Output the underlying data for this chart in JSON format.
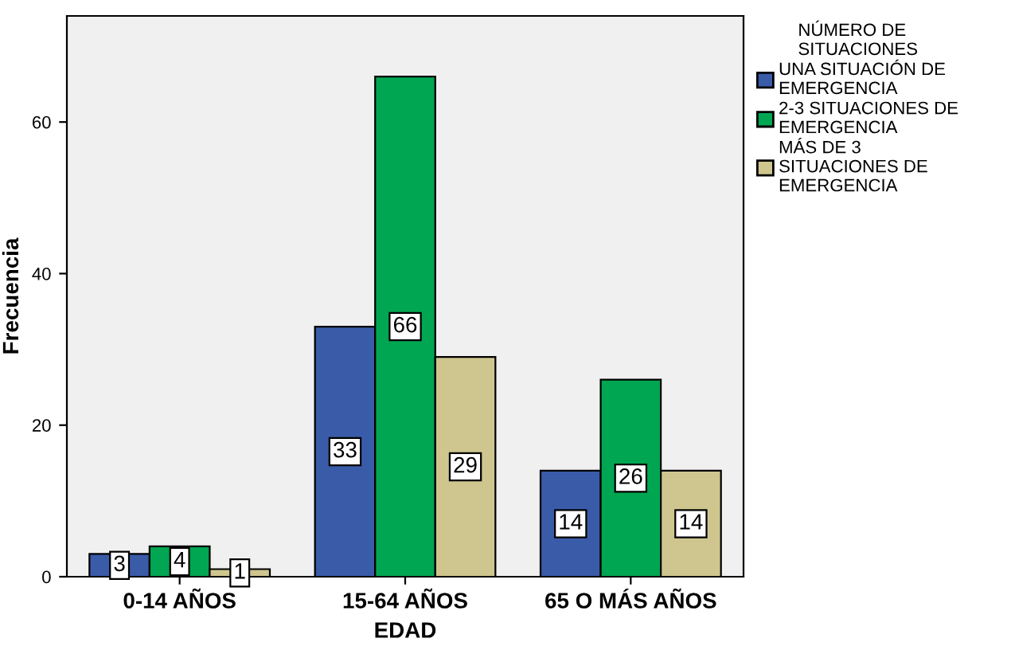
{
  "chart_data": {
    "type": "bar",
    "xlabel": "EDAD",
    "ylabel": "Frecuencia",
    "legend_title": "NÚMERO DE\nSITUACIONES",
    "categories": [
      "0-14 AÑOS",
      "15-64 AÑOS",
      "65 O MÁS AÑOS"
    ],
    "series": [
      {
        "name": "UNA SITUACIÓN DE\nEMERGENCIA",
        "color": "#3a5ba8",
        "values": [
          3,
          33,
          14
        ]
      },
      {
        "name": "2-3 SITUACIONES DE\nEMERGENCIA",
        "color": "#00a651",
        "values": [
          4,
          66,
          26
        ]
      },
      {
        "name": "MÁS DE 3\nSITUACIONES DE\nEMERGENCIA",
        "color": "#cec68e",
        "values": [
          1,
          29,
          14
        ]
      }
    ],
    "ylim": [
      0,
      74
    ],
    "yticks": [
      0,
      20,
      40,
      60
    ],
    "data_labels": true,
    "legend": "top right",
    "grid": false
  }
}
